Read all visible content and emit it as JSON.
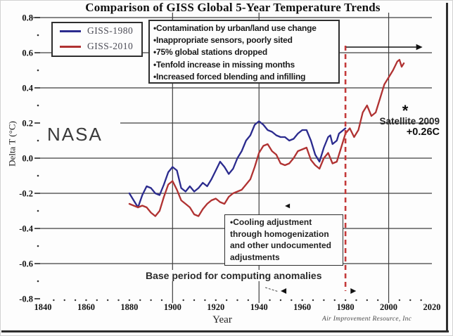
{
  "chart_data": {
    "type": "line",
    "title": "Comparison of GISS Global 5-Year Temperature Trends",
    "xlabel": "Year",
    "ylabel": "Delta T (°C)",
    "xlim": [
      1840,
      2020
    ],
    "ylim": [
      -0.8,
      0.8
    ],
    "grid": true,
    "legend_position": "top-left",
    "x_ticks": [
      1840,
      1860,
      1880,
      1900,
      1920,
      1940,
      1960,
      1980,
      2000,
      2020
    ],
    "y_ticks": [
      {
        "v": 0.8,
        "label": "0.8"
      },
      {
        "v": 0.6,
        "label": "0.6"
      },
      {
        "v": 0.4,
        "label": "0.4"
      },
      {
        "v": 0.2,
        "label": "0.2"
      },
      {
        "v": 0.0,
        "label": "0.0"
      },
      {
        "v": -0.2,
        "label": "-0.2"
      },
      {
        "v": -0.4,
        "label": "-0.4"
      },
      {
        "v": -0.6,
        "label": "-0.6"
      },
      {
        "v": -0.8,
        "label": "-0.8"
      }
    ],
    "gridlines": {
      "horizontal": [
        {
          "v": 0.8
        },
        {
          "v": 0.6
        },
        {
          "v": 0.4
        },
        {
          "v": 0.2
        },
        {
          "v": 0.0
        },
        {
          "v": -0.2
        },
        {
          "v": -0.4
        },
        {
          "v": -0.6
        }
      ],
      "vertical_years": [
        1900,
        1940,
        2000
      ]
    },
    "reference_line": {
      "x": 1980,
      "style": "dashed",
      "color": "#c43a3a"
    },
    "annotations": {
      "top_arrow": {
        "from_year": 1980,
        "to_year": 2015,
        "v": 0.632
      },
      "base_period_span": {
        "from_year": 1952,
        "to_year": 1983,
        "v": -0.756
      },
      "curve_pointer": {
        "year": 1952,
        "v": -0.272
      }
    },
    "series": [
      {
        "name": "GISS-1980",
        "color": "#2b2b8e",
        "points": [
          [
            1880,
            -0.2
          ],
          [
            1882,
            -0.24
          ],
          [
            1884,
            -0.28
          ],
          [
            1886,
            -0.21
          ],
          [
            1888,
            -0.16
          ],
          [
            1890,
            -0.17
          ],
          [
            1892,
            -0.2
          ],
          [
            1894,
            -0.21
          ],
          [
            1896,
            -0.15
          ],
          [
            1898,
            -0.08
          ],
          [
            1900,
            -0.05
          ],
          [
            1902,
            -0.07
          ],
          [
            1904,
            -0.17
          ],
          [
            1906,
            -0.19
          ],
          [
            1908,
            -0.16
          ],
          [
            1910,
            -0.19
          ],
          [
            1912,
            -0.17
          ],
          [
            1914,
            -0.14
          ],
          [
            1916,
            -0.16
          ],
          [
            1918,
            -0.12
          ],
          [
            1920,
            -0.07
          ],
          [
            1922,
            -0.02
          ],
          [
            1924,
            -0.05
          ],
          [
            1926,
            -0.09
          ],
          [
            1928,
            -0.06
          ],
          [
            1930,
            0.0
          ],
          [
            1932,
            0.04
          ],
          [
            1934,
            0.1
          ],
          [
            1936,
            0.13
          ],
          [
            1938,
            0.19
          ],
          [
            1940,
            0.21
          ],
          [
            1942,
            0.19
          ],
          [
            1944,
            0.16
          ],
          [
            1946,
            0.15
          ],
          [
            1948,
            0.13
          ],
          [
            1950,
            0.12
          ],
          [
            1952,
            0.12
          ],
          [
            1954,
            0.1
          ],
          [
            1956,
            0.11
          ],
          [
            1958,
            0.14
          ],
          [
            1960,
            0.16
          ],
          [
            1962,
            0.16
          ],
          [
            1964,
            0.1
          ],
          [
            1966,
            0.02
          ],
          [
            1968,
            -0.02
          ],
          [
            1970,
            0.06
          ],
          [
            1972,
            0.12
          ],
          [
            1973,
            0.13
          ],
          [
            1974,
            0.08
          ],
          [
            1976,
            0.1
          ],
          [
            1977,
            0.14
          ],
          [
            1978,
            0.15
          ],
          [
            1980,
            0.17
          ]
        ]
      },
      {
        "name": "GISS-2010",
        "color": "#b03232",
        "points": [
          [
            1880,
            -0.26
          ],
          [
            1882,
            -0.27
          ],
          [
            1884,
            -0.28
          ],
          [
            1886,
            -0.27
          ],
          [
            1888,
            -0.28
          ],
          [
            1890,
            -0.31
          ],
          [
            1892,
            -0.33
          ],
          [
            1894,
            -0.3
          ],
          [
            1896,
            -0.22
          ],
          [
            1898,
            -0.15
          ],
          [
            1900,
            -0.13
          ],
          [
            1902,
            -0.18
          ],
          [
            1904,
            -0.24
          ],
          [
            1906,
            -0.26
          ],
          [
            1908,
            -0.28
          ],
          [
            1910,
            -0.32
          ],
          [
            1912,
            -0.33
          ],
          [
            1914,
            -0.29
          ],
          [
            1916,
            -0.26
          ],
          [
            1918,
            -0.24
          ],
          [
            1920,
            -0.23
          ],
          [
            1922,
            -0.25
          ],
          [
            1924,
            -0.26
          ],
          [
            1926,
            -0.22
          ],
          [
            1928,
            -0.2
          ],
          [
            1930,
            -0.19
          ],
          [
            1932,
            -0.18
          ],
          [
            1934,
            -0.15
          ],
          [
            1936,
            -0.12
          ],
          [
            1938,
            -0.05
          ],
          [
            1940,
            0.03
          ],
          [
            1942,
            0.07
          ],
          [
            1944,
            0.08
          ],
          [
            1946,
            0.04
          ],
          [
            1948,
            0.02
          ],
          [
            1950,
            -0.03
          ],
          [
            1952,
            -0.04
          ],
          [
            1954,
            -0.03
          ],
          [
            1956,
            0.0
          ],
          [
            1958,
            0.04
          ],
          [
            1960,
            0.05
          ],
          [
            1962,
            0.06
          ],
          [
            1964,
            -0.01
          ],
          [
            1966,
            -0.04
          ],
          [
            1968,
            -0.06
          ],
          [
            1970,
            0.0
          ],
          [
            1972,
            0.03
          ],
          [
            1974,
            -0.03
          ],
          [
            1976,
            -0.02
          ],
          [
            1978,
            0.06
          ],
          [
            1980,
            0.14
          ],
          [
            1982,
            0.17
          ],
          [
            1984,
            0.12
          ],
          [
            1986,
            0.16
          ],
          [
            1988,
            0.26
          ],
          [
            1990,
            0.3
          ],
          [
            1992,
            0.24
          ],
          [
            1994,
            0.26
          ],
          [
            1996,
            0.34
          ],
          [
            1998,
            0.42
          ],
          [
            2000,
            0.46
          ],
          [
            2002,
            0.5
          ],
          [
            2004,
            0.55
          ],
          [
            2005,
            0.56
          ],
          [
            2006,
            0.52
          ],
          [
            2007,
            0.54
          ]
        ]
      }
    ]
  },
  "annotations": {
    "issues": [
      "•Contamination by urban/land use change",
      "•Inappropriate sensors, poorly sited",
      "•75% global stations dropped",
      "•Tenfold increase in missing months",
      "•Increased forced blending and infilling"
    ],
    "cooling": [
      "•Cooling adjustment",
      "through homogenization",
      "and other undocumented",
      "adjustments"
    ],
    "base_period": "Base period for computing anomalies",
    "nasa": "NASA",
    "satellite_marker": "*",
    "satellite_label": "Satellite 2009",
    "satellite_value": "+0.26C"
  },
  "watermark": "Air Improvement Resource, Inc"
}
